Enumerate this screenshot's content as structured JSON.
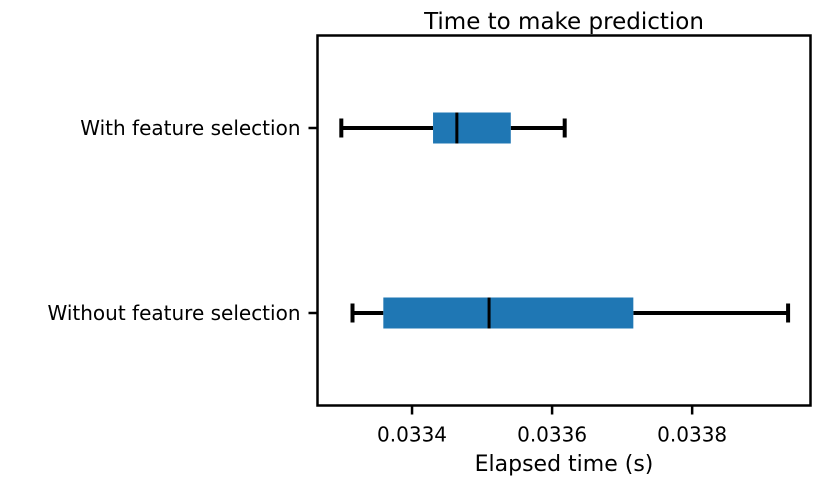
{
  "chart_data": {
    "type": "boxplot",
    "orientation": "horizontal",
    "title": "Time to make prediction",
    "xlabel": "Elapsed time (s)",
    "ylabel": "",
    "xlim": [
      0.033265,
      0.033969
    ],
    "xticks": [
      0.0334,
      0.0336,
      0.0338
    ],
    "xtick_labels": [
      "0.0334",
      "0.0336",
      "0.0338"
    ],
    "grid": false,
    "box_color": "#1f77b4",
    "categories": [
      "Without feature selection",
      "With feature selection"
    ],
    "boxes": [
      {
        "label": "Without feature selection",
        "whisker_low": 0.033315,
        "q1": 0.033359,
        "median": 0.03351,
        "q3": 0.033716,
        "whisker_high": 0.033937
      },
      {
        "label": "With feature selection",
        "whisker_low": 0.033299,
        "q1": 0.03343,
        "median": 0.033464,
        "q3": 0.033541,
        "whisker_high": 0.033618
      }
    ]
  }
}
